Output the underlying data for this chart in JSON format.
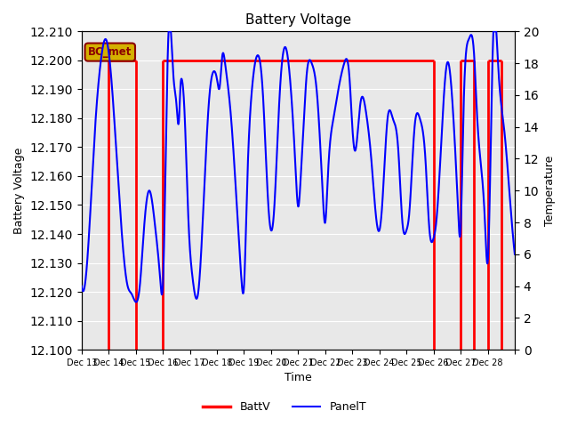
{
  "title": "Battery Voltage",
  "xlabel": "Time",
  "ylabel_left": "Battery Voltage",
  "ylabel_right": "Temperature",
  "ylim_left": [
    12.1,
    12.21
  ],
  "ylim_right": [
    0,
    20
  ],
  "yticks_left": [
    12.1,
    12.11,
    12.12,
    12.13,
    12.14,
    12.15,
    12.16,
    12.17,
    12.18,
    12.19,
    12.2,
    12.21
  ],
  "yticks_right": [
    0,
    2,
    4,
    6,
    8,
    10,
    12,
    14,
    16,
    18,
    20
  ],
  "xlim": [
    0,
    16
  ],
  "xtick_positions": [
    0,
    1,
    2,
    3,
    4,
    5,
    6,
    7,
    8,
    9,
    10,
    11,
    12,
    13,
    14,
    15,
    16
  ],
  "xtick_labels": [
    "Dec 13",
    "Dec 14",
    "Dec 15",
    "Dec 16",
    "Dec 17",
    "Dec 18",
    "Dec 19",
    "Dec 20",
    "Dec 21",
    "Dec 22",
    "Dec 23",
    "Dec 24",
    "Dec 25",
    "Dec 26",
    "Dec 27",
    "Dec 28",
    ""
  ],
  "bg_color": "#e8e8e8",
  "annotation_label": "BC_met",
  "annotation_bg": "#d4b000",
  "annotation_fg": "#8b0000",
  "batt_color": "red",
  "panel_color": "blue",
  "batt_lw": 2.0,
  "panel_lw": 1.5,
  "batt_segments": [
    [
      1.0,
      2.0
    ],
    [
      3.0,
      13.0
    ],
    [
      14.0,
      14.5
    ],
    [
      15.0,
      15.5
    ]
  ],
  "batt_y": 12.2,
  "panel_t_x": [
    0.0,
    0.3,
    0.5,
    0.7,
    0.9,
    1.1,
    1.3,
    1.5,
    1.7,
    1.85,
    2.0,
    2.15,
    2.3,
    2.5,
    2.7,
    2.9,
    3.0,
    3.2,
    3.4,
    3.5,
    3.6,
    3.65,
    3.7,
    3.8,
    3.95,
    4.1,
    4.3,
    4.5,
    4.7,
    4.9,
    5.0,
    5.1,
    5.15,
    5.2,
    5.3,
    5.5,
    5.7,
    5.9,
    6.0,
    6.1,
    6.3,
    6.5,
    6.7,
    6.9,
    7.0,
    7.1,
    7.3,
    7.5,
    7.7,
    7.9,
    8.0,
    8.1,
    8.2,
    8.3,
    8.5,
    8.7,
    8.9,
    9.0,
    9.1,
    9.3,
    9.5,
    9.7,
    9.9,
    10.0,
    10.1,
    10.3,
    10.5,
    10.7,
    10.9,
    11.0,
    11.1,
    11.3,
    11.5,
    11.7,
    11.85,
    12.0,
    12.1,
    12.3,
    12.5,
    12.7,
    12.85,
    13.0,
    13.1,
    13.3,
    13.5,
    13.7,
    13.9,
    14.0,
    14.1,
    14.3,
    14.5,
    14.6,
    14.7,
    14.9,
    15.0,
    15.2,
    15.4,
    15.6,
    15.8,
    16.0
  ],
  "panel_t_y": [
    4.0,
    8.0,
    14.0,
    18.0,
    19.5,
    17.0,
    12.0,
    7.0,
    4.0,
    3.5,
    3.0,
    4.0,
    7.5,
    10.0,
    8.0,
    4.5,
    4.0,
    19.5,
    17.0,
    15.5,
    14.5,
    16.5,
    17.0,
    15.0,
    8.0,
    4.5,
    3.5,
    9.0,
    15.5,
    17.5,
    17.0,
    16.5,
    17.5,
    18.5,
    18.0,
    15.0,
    10.0,
    4.5,
    4.0,
    9.5,
    16.5,
    18.5,
    16.0,
    9.0,
    7.5,
    8.5,
    15.5,
    19.0,
    17.0,
    11.5,
    9.0,
    11.0,
    14.0,
    17.0,
    18.0,
    16.0,
    10.0,
    8.0,
    11.0,
    14.5,
    16.5,
    18.0,
    17.0,
    14.0,
    12.5,
    15.5,
    15.0,
    12.0,
    8.0,
    7.5,
    9.0,
    14.5,
    14.5,
    12.5,
    8.0,
    7.5,
    8.5,
    14.0,
    14.5,
    12.0,
    7.5,
    7.0,
    8.0,
    13.5,
    18.0,
    15.5,
    9.0,
    7.5,
    14.5,
    19.5,
    18.5,
    15.0,
    12.5,
    8.0,
    5.5,
    19.5,
    17.5,
    14.0,
    10.0,
    6.0
  ]
}
